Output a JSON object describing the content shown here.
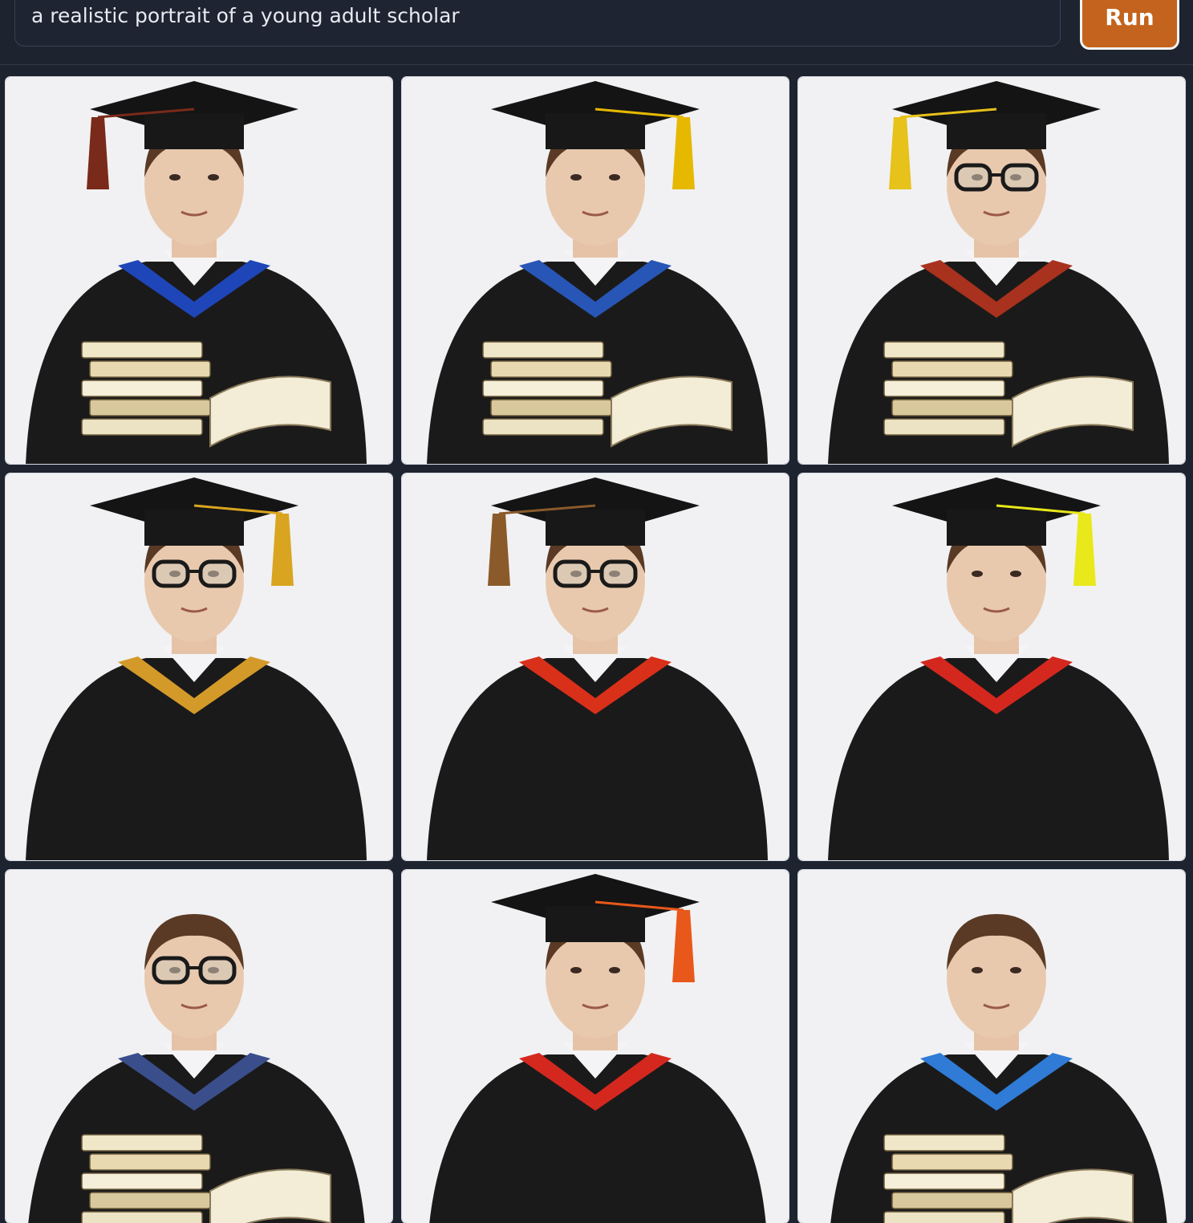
{
  "prompt": {
    "value": "a realistic portrait of a young adult scholar"
  },
  "run_button": {
    "label": "Run",
    "color": "#c4631d"
  },
  "gallery": {
    "images": [
      {
        "name": "scholar-image-1",
        "glasses": false,
        "tassel_color": "#7a2a1a",
        "books": true,
        "hood_color": "#1f46b8"
      },
      {
        "name": "scholar-image-2",
        "glasses": false,
        "tassel_color": "#e6b800",
        "books": true,
        "hood_color": "#2856b6"
      },
      {
        "name": "scholar-image-3",
        "glasses": true,
        "tassel_color": "#e6c21a",
        "books": true,
        "hood_color": "#a8321e"
      },
      {
        "name": "scholar-image-4",
        "glasses": true,
        "tassel_color": "#d9a520",
        "books": false,
        "hood_color": "#d39a2a"
      },
      {
        "name": "scholar-image-5",
        "glasses": true,
        "tassel_color": "#8a5a2a",
        "books": false,
        "hood_color": "#d9301a"
      },
      {
        "name": "scholar-image-6",
        "glasses": false,
        "tassel_color": "#e8e81a",
        "books": false,
        "hood_color": "#d4281f"
      },
      {
        "name": "scholar-image-7",
        "glasses": true,
        "tassel_color": "",
        "books": true,
        "hood_color": "#3a4e8c"
      },
      {
        "name": "scholar-image-8",
        "glasses": false,
        "tassel_color": "#e8581a",
        "books": false,
        "hood_color": "#d4281f"
      },
      {
        "name": "scholar-image-9",
        "glasses": false,
        "tassel_color": "",
        "books": true,
        "hood_color": "#2f7bd6"
      }
    ]
  }
}
